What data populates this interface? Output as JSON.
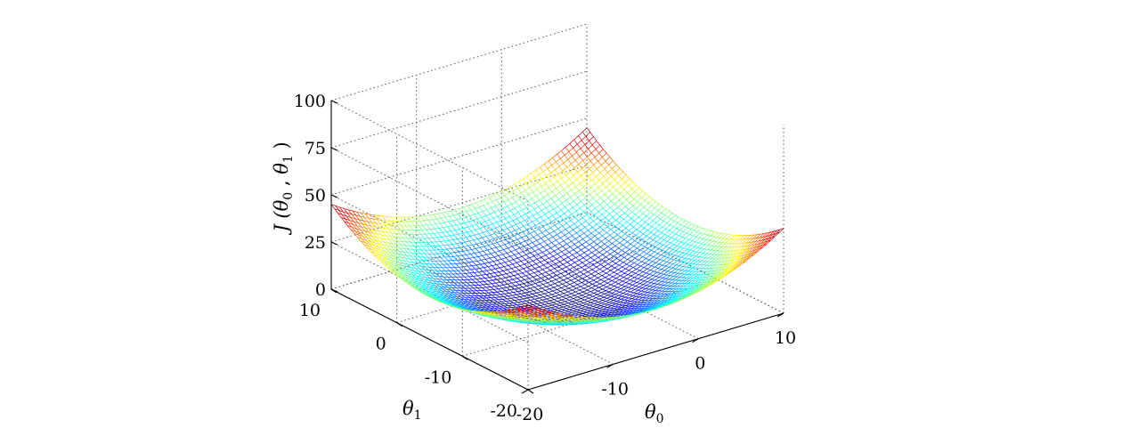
{
  "chart_data": {
    "type": "surface",
    "title": "",
    "x_axis": {
      "symbol": "θ",
      "subscript": "0",
      "range": [
        -20,
        10
      ],
      "ticks": [
        -20,
        -10,
        0,
        10
      ]
    },
    "y_axis": {
      "symbol": "θ",
      "subscript": "1",
      "range": [
        -20,
        10
      ],
      "ticks": [
        -20,
        -10,
        0,
        10
      ]
    },
    "z_axis": {
      "label_prefix": "J (",
      "label_symbol1": "θ",
      "label_sub1": "0",
      "label_sep": " , ",
      "label_symbol2": "θ",
      "label_sub2": "1",
      "label_suffix": " )",
      "range": [
        0,
        100
      ],
      "ticks": [
        0,
        25,
        50,
        75,
        100
      ]
    },
    "surface": {
      "function": "J = 0.1*((θ0+5)^2 + (θ1+5)^2)",
      "samples": [
        {
          "theta0": -5,
          "theta1": -5,
          "J": 0
        },
        {
          "theta0": -20,
          "theta1": 10,
          "J": 45
        },
        {
          "theta0": 10,
          "theta1": -20,
          "J": 45
        },
        {
          "theta0": -20,
          "theta1": -20,
          "J": 45
        },
        {
          "theta0": 10,
          "theta1": 10,
          "J": 45
        }
      ],
      "colormap": "jet",
      "grid": true
    }
  }
}
